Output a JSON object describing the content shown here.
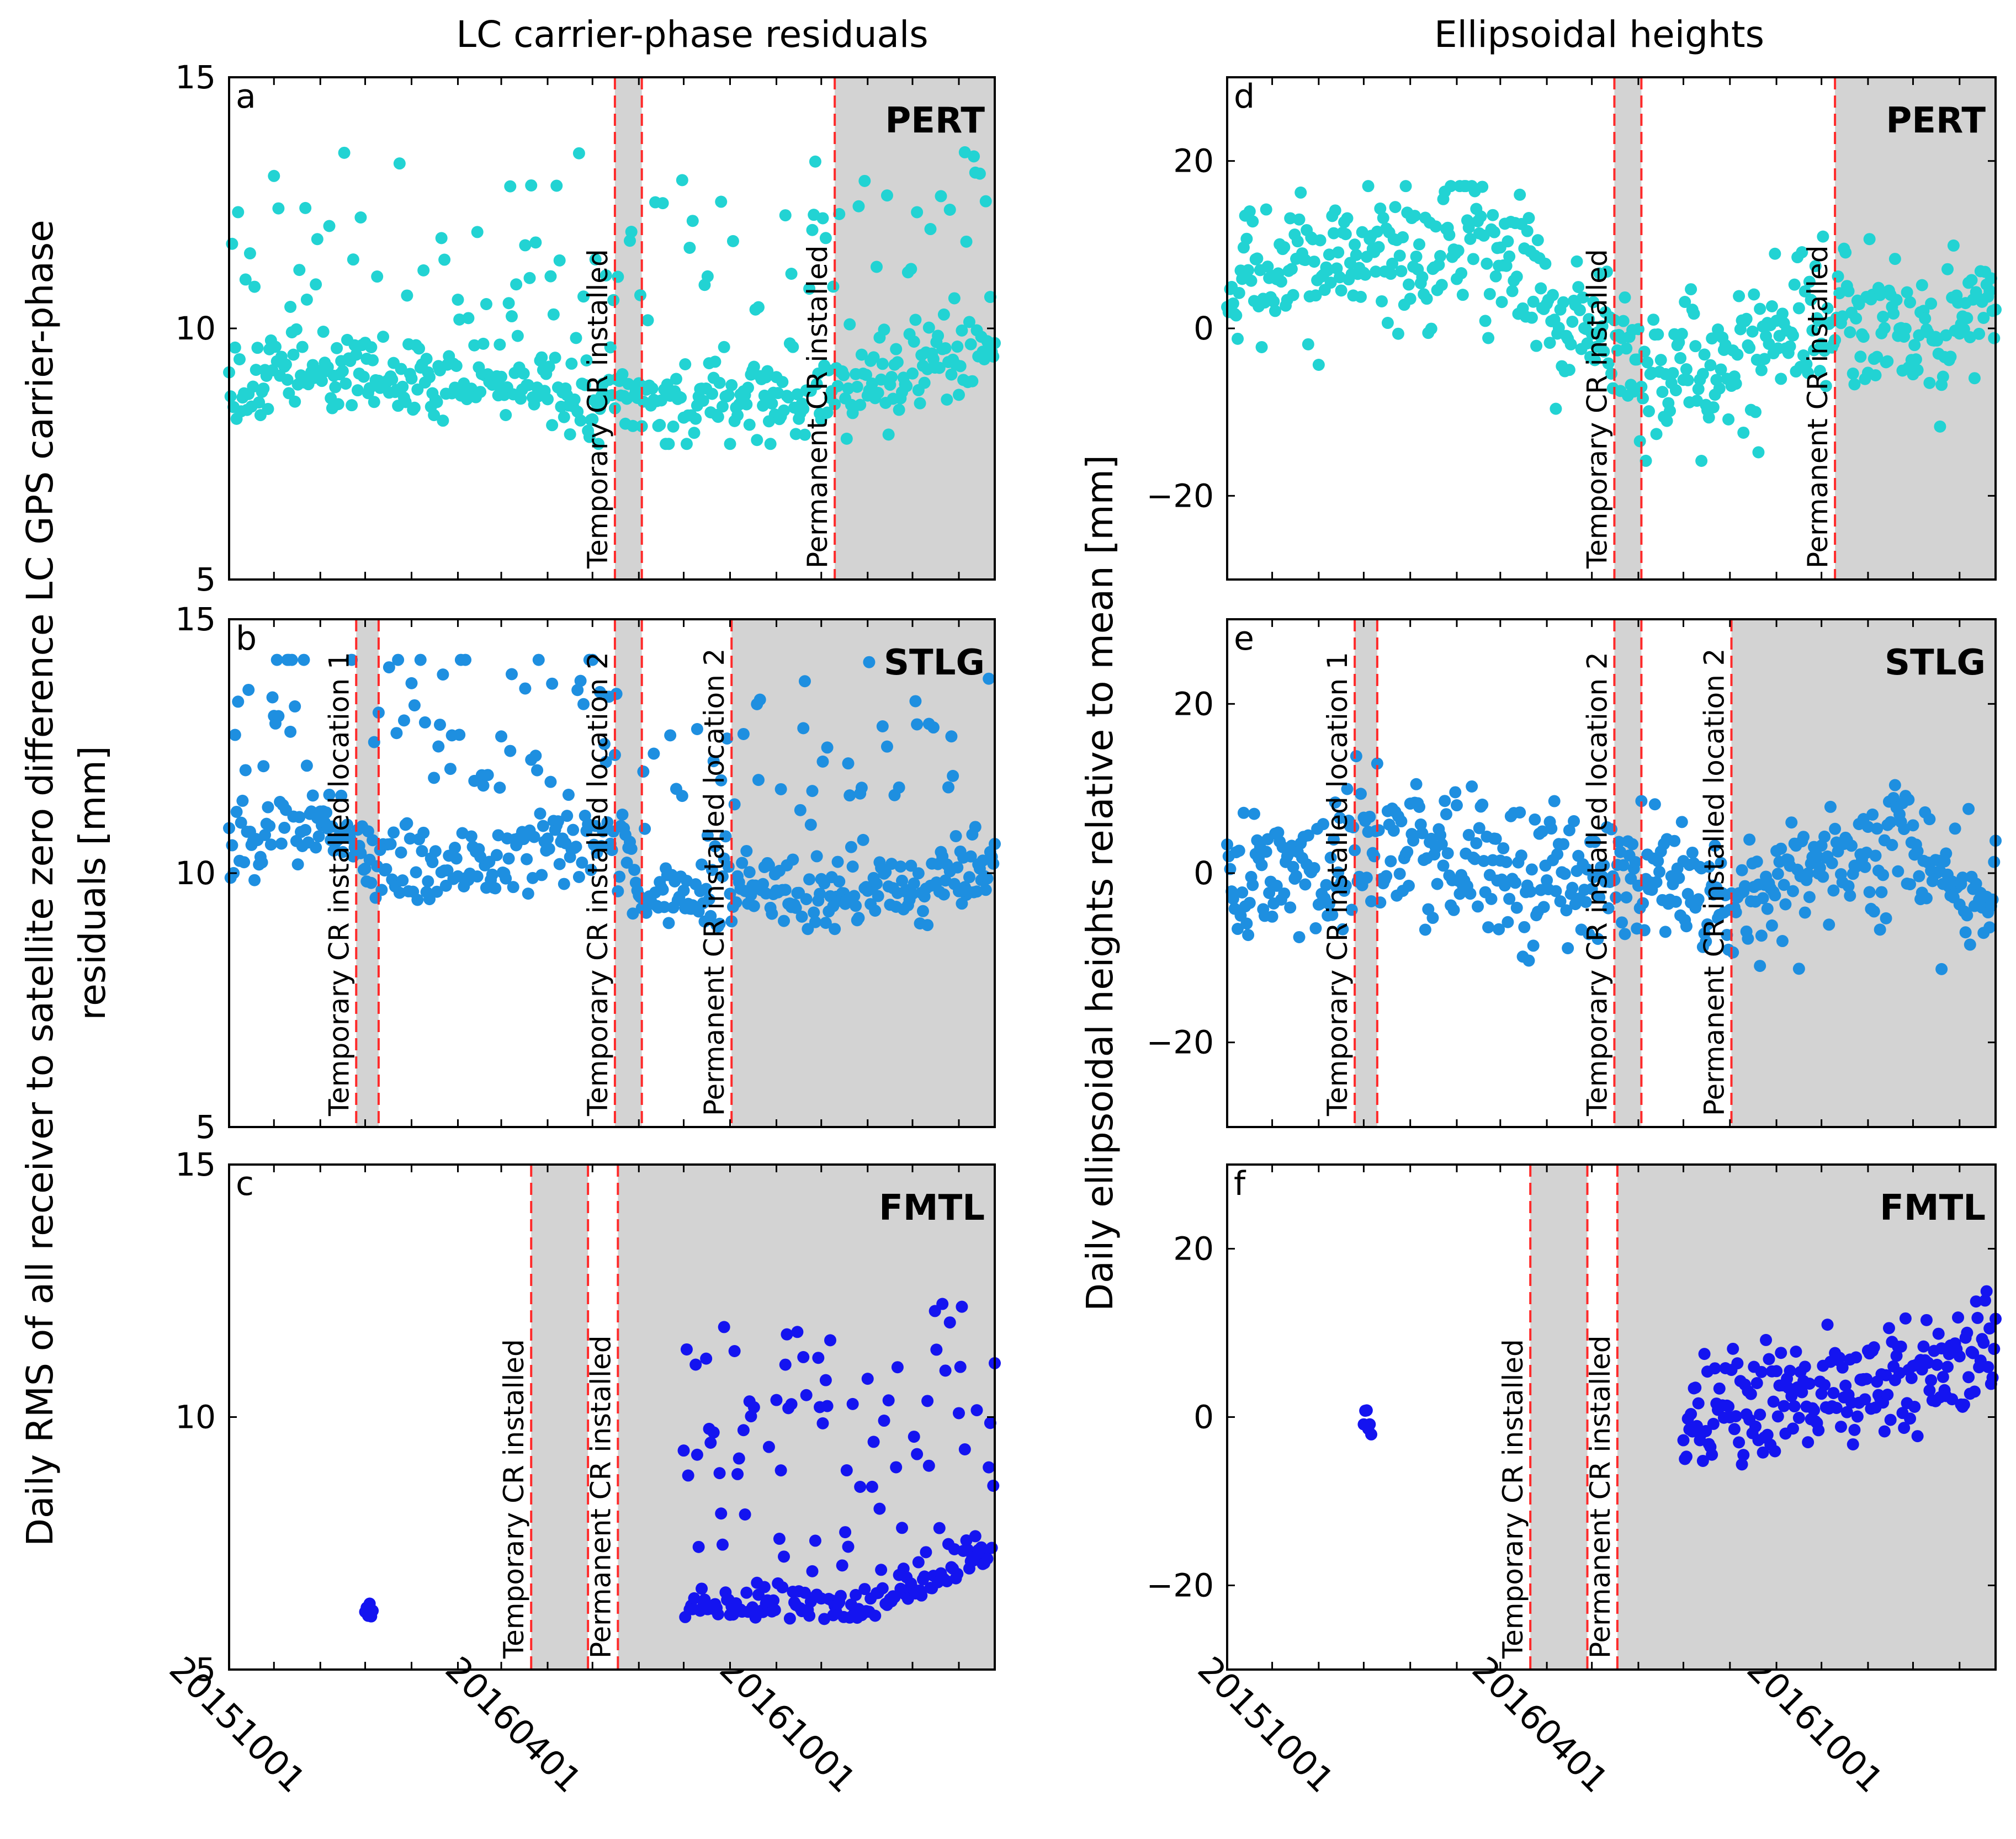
{
  "figure": {
    "left_column_title": "LC carrier-phase residuals",
    "right_column_title": "Ellipsoidal heights",
    "left_ylabel_line1": "Daily RMS of all receiver to satellite zero difference LC GPS carrier-phase",
    "left_ylabel_line2": "residuals [mm]",
    "right_ylabel": "Daily ellipsoidal heights relative to mean [mm]",
    "x_tick_labels": [
      "20151001",
      "20160401",
      "20161001"
    ],
    "colors": {
      "PERT": "#22d3d3",
      "STLG": "#1e8fe0",
      "FMTL": "#1414f0",
      "event_line": "#ff2a2a",
      "shade": "#d3d3d3"
    }
  },
  "chart_data": [
    {
      "type": "scatter",
      "panel": "a",
      "station": "PERT",
      "quantity": "rms",
      "column": 0,
      "row": 0,
      "title": "LC carrier-phase residuals",
      "ylabel": "Daily RMS of all receiver to satellite zero difference LC GPS carrier-phase residuals [mm]",
      "xlim": [
        "2015-09-01",
        "2017-01-25"
      ],
      "ylim": [
        5,
        15
      ],
      "yticks": [
        "5",
        "10",
        "15"
      ],
      "color": "PERT",
      "shaded_periods": [
        [
          "2016-05-16",
          "2016-06-03"
        ],
        [
          "2016-10-10",
          "2017-01-25"
        ]
      ],
      "events": [
        {
          "date": "2016-05-16",
          "label": "Temporary CR installed"
        },
        {
          "date": "2016-06-03",
          "label": ""
        },
        {
          "date": "2016-10-10",
          "label": "Permanent CR installed"
        }
      ],
      "data_segments": [
        {
          "start": "2015-09-01",
          "end": "2017-01-25",
          "pattern": "rms_pert"
        }
      ]
    },
    {
      "type": "scatter",
      "panel": "b",
      "station": "STLG",
      "quantity": "rms",
      "column": 0,
      "row": 1,
      "xlim": [
        "2015-09-01",
        "2017-01-25"
      ],
      "ylim": [
        5,
        15
      ],
      "yticks": [
        "5",
        "10",
        "15"
      ],
      "color": "STLG",
      "shaded_periods": [
        [
          "2015-11-25",
          "2015-12-10"
        ],
        [
          "2016-05-16",
          "2016-06-03"
        ],
        [
          "2016-08-02",
          "2017-01-25"
        ]
      ],
      "events": [
        {
          "date": "2015-11-25",
          "label": "Temporary CR installed location 1"
        },
        {
          "date": "2015-12-10",
          "label": ""
        },
        {
          "date": "2016-05-16",
          "label": "Temporary CR installed location 2"
        },
        {
          "date": "2016-06-03",
          "label": ""
        },
        {
          "date": "2016-08-02",
          "label": "Permanent CR installed location  2"
        }
      ],
      "data_segments": [
        {
          "start": "2015-09-01",
          "end": "2017-01-25",
          "pattern": "rms_stlg"
        }
      ]
    },
    {
      "type": "scatter",
      "panel": "c",
      "station": "FMTL",
      "quantity": "rms",
      "column": 0,
      "row": 2,
      "xlim": [
        "2015-09-01",
        "2017-01-25"
      ],
      "ylim": [
        5,
        15
      ],
      "yticks": [
        "5",
        "10",
        "15"
      ],
      "color": "FMTL",
      "shaded_periods": [
        [
          "2016-03-21",
          "2016-04-28"
        ],
        [
          "2016-05-18",
          "2017-01-25"
        ]
      ],
      "events": [
        {
          "date": "2016-03-21",
          "label": "Temporary CR installed"
        },
        {
          "date": "2016-04-28",
          "label": ""
        },
        {
          "date": "2016-05-18",
          "label": "Permanent CR installed"
        }
      ],
      "data_segments": [
        {
          "start": "2015-12-01",
          "end": "2015-12-06",
          "pattern": "rms_fmtl_early"
        },
        {
          "start": "2016-07-01",
          "end": "2017-01-25",
          "pattern": "rms_fmtl"
        }
      ]
    },
    {
      "type": "scatter",
      "panel": "d",
      "station": "PERT",
      "quantity": "height",
      "column": 1,
      "row": 0,
      "title": "Ellipsoidal heights",
      "ylabel": "Daily ellipsoidal heights relative to mean [mm]",
      "xlim": [
        "2015-09-01",
        "2017-01-25"
      ],
      "ylim": [
        -30,
        30
      ],
      "yticks": [
        "20",
        "0",
        "−20"
      ],
      "color": "PERT",
      "shaded_periods": [
        [
          "2016-05-16",
          "2016-06-03"
        ],
        [
          "2016-10-10",
          "2017-01-25"
        ]
      ],
      "events": [
        {
          "date": "2016-05-16",
          "label": "Temporary CR installed"
        },
        {
          "date": "2016-06-03",
          "label": ""
        },
        {
          "date": "2016-10-10",
          "label": "Permanent CR installed"
        }
      ],
      "data_segments": [
        {
          "start": "2015-09-01",
          "end": "2017-01-25",
          "pattern": "height_pert"
        }
      ]
    },
    {
      "type": "scatter",
      "panel": "e",
      "station": "STLG",
      "quantity": "height",
      "column": 1,
      "row": 1,
      "xlim": [
        "2015-09-01",
        "2017-01-25"
      ],
      "ylim": [
        -30,
        30
      ],
      "yticks": [
        "20",
        "0",
        "−20"
      ],
      "color": "STLG",
      "shaded_periods": [
        [
          "2015-11-25",
          "2015-12-10"
        ],
        [
          "2016-05-16",
          "2016-06-03"
        ],
        [
          "2016-08-02",
          "2017-01-25"
        ]
      ],
      "events": [
        {
          "date": "2015-11-25",
          "label": "Temporary CR installed location 1"
        },
        {
          "date": "2015-12-10",
          "label": ""
        },
        {
          "date": "2016-05-16",
          "label": "Temporary CR installed location  2"
        },
        {
          "date": "2016-06-03",
          "label": ""
        },
        {
          "date": "2016-08-02",
          "label": "Permanent CR installed location  2"
        }
      ],
      "data_segments": [
        {
          "start": "2015-09-01",
          "end": "2017-01-25",
          "pattern": "height_stlg"
        }
      ]
    },
    {
      "type": "scatter",
      "panel": "f",
      "station": "FMTL",
      "quantity": "height",
      "column": 1,
      "row": 2,
      "xlim": [
        "2015-09-01",
        "2017-01-25"
      ],
      "ylim": [
        -30,
        30
      ],
      "yticks": [
        "20",
        "0",
        "−20"
      ],
      "color": "FMTL",
      "shaded_periods": [
        [
          "2016-03-21",
          "2016-04-28"
        ],
        [
          "2016-05-18",
          "2017-01-25"
        ]
      ],
      "events": [
        {
          "date": "2016-03-21",
          "label": "Temporary CR installed"
        },
        {
          "date": "2016-04-28",
          "label": ""
        },
        {
          "date": "2016-05-18",
          "label": "Permanent CR installed"
        }
      ],
      "data_segments": [
        {
          "start": "2015-12-01",
          "end": "2015-12-06",
          "pattern": "height_fmtl_early"
        },
        {
          "start": "2016-07-01",
          "end": "2017-01-25",
          "pattern": "height_fmtl"
        }
      ]
    }
  ]
}
